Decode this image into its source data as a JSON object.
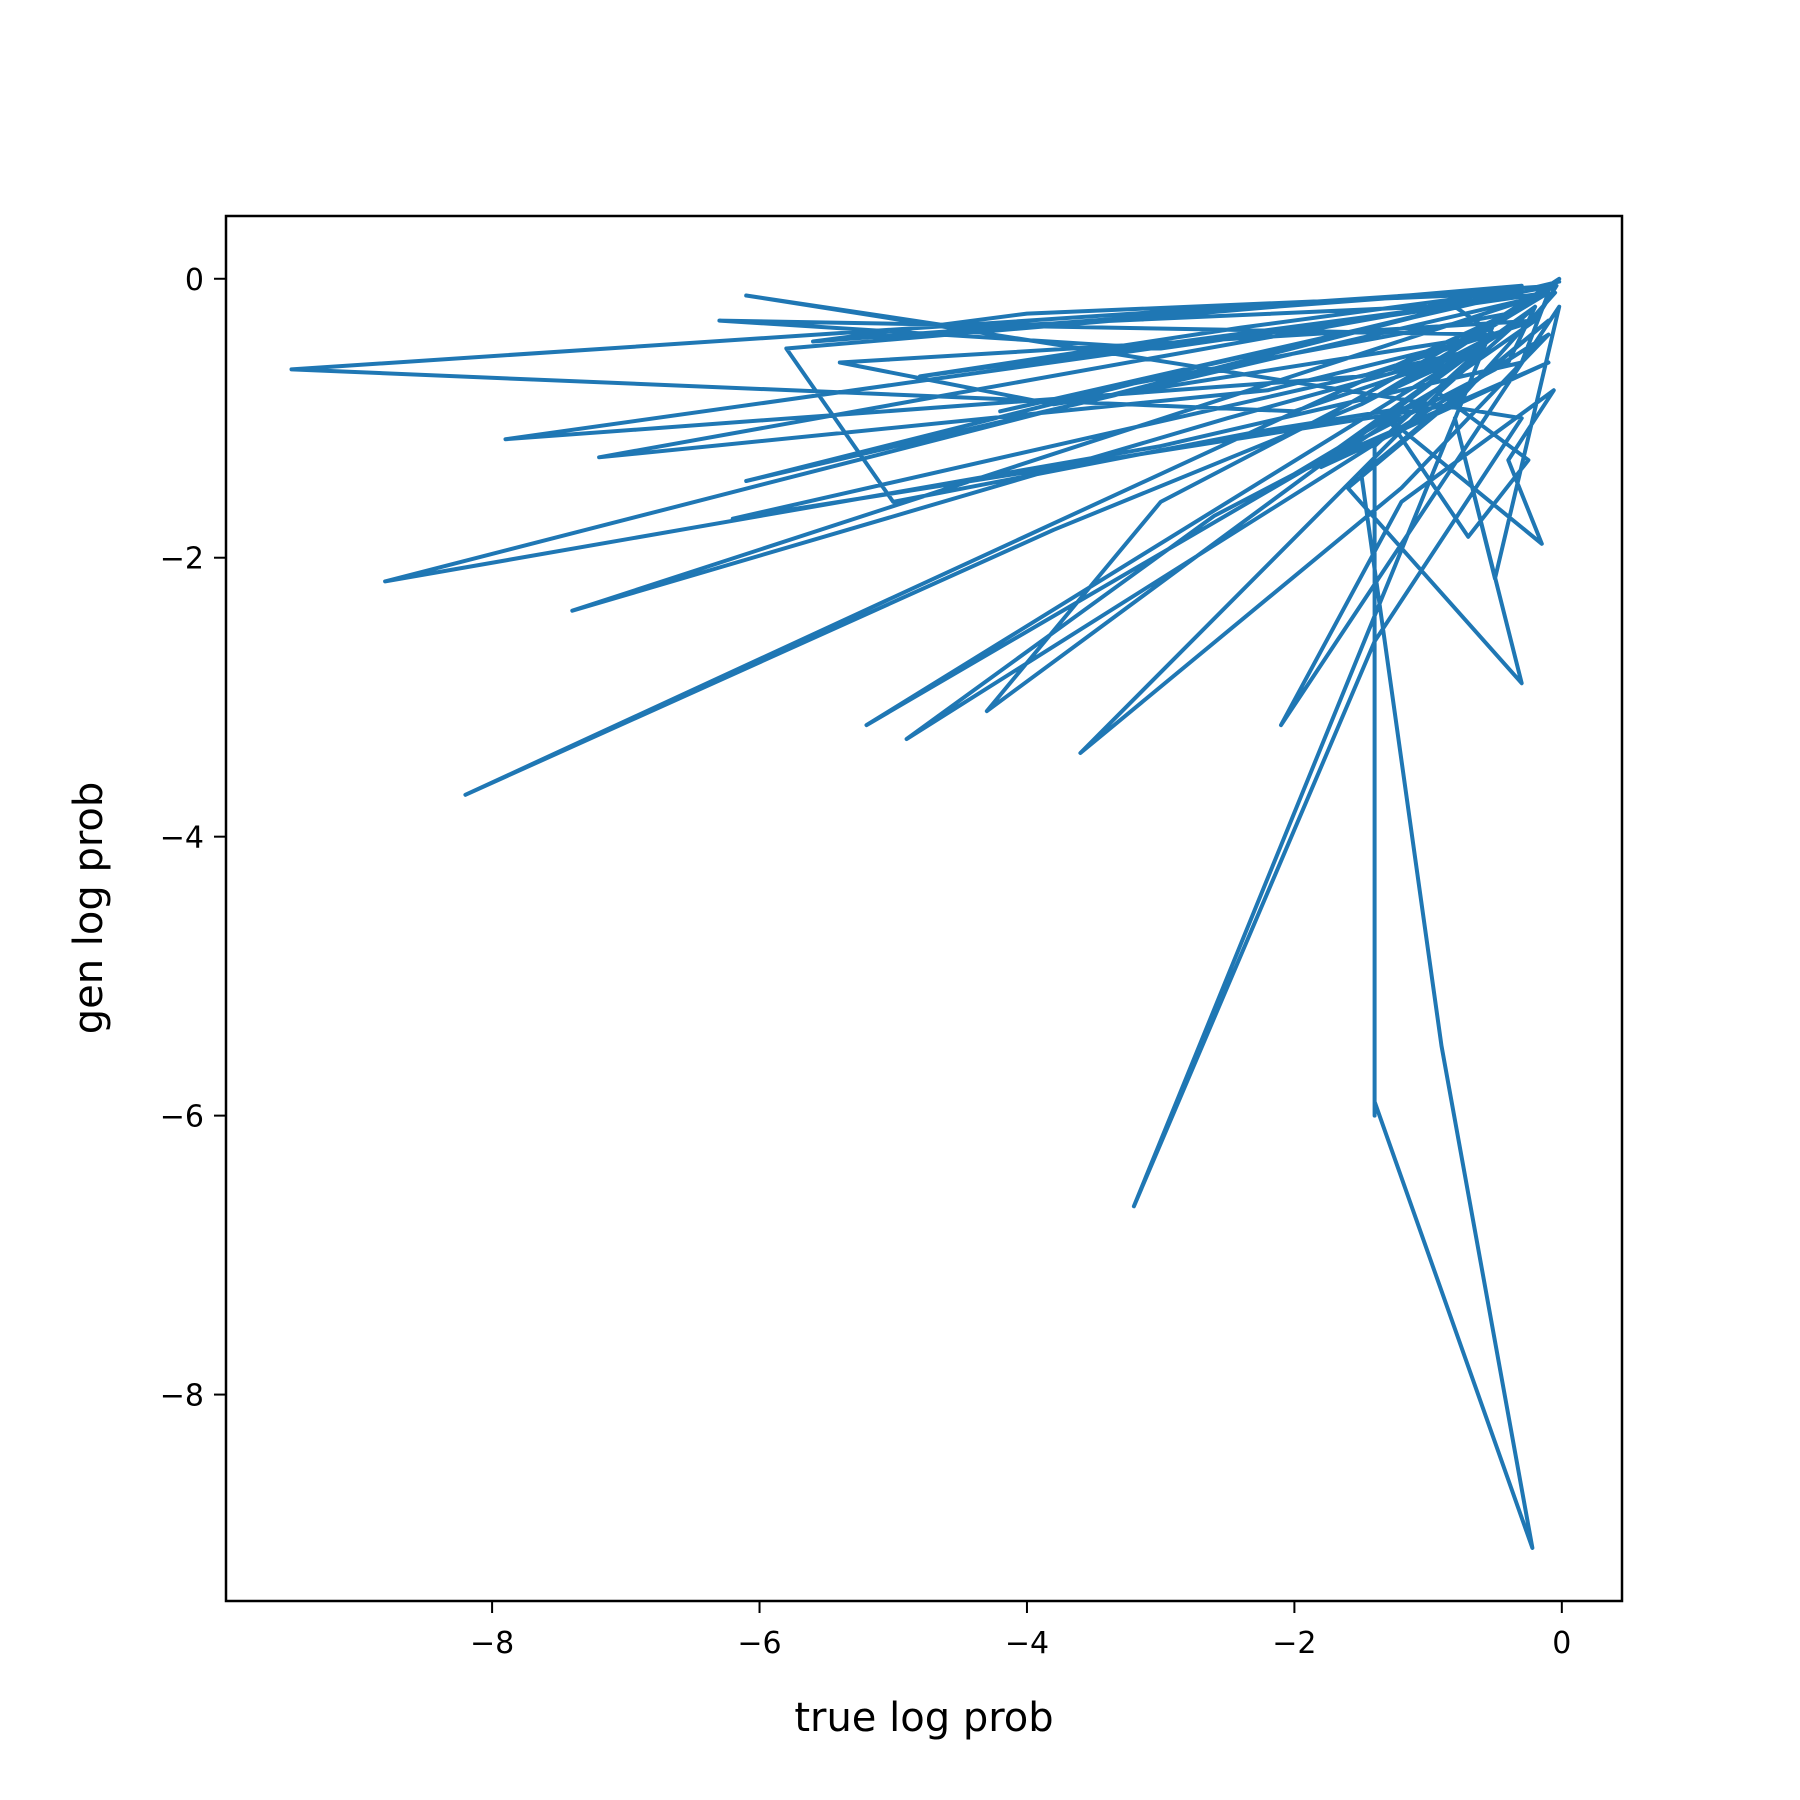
{
  "chart_data": {
    "type": "line",
    "xlabel": "true log prob",
    "ylabel": "gen log prob",
    "xlim": [
      -9.99,
      0.45
    ],
    "ylim": [
      -9.48,
      0.45
    ],
    "xticks": [
      -8,
      -6,
      -4,
      -2,
      0
    ],
    "yticks": [
      0,
      -2,
      -4,
      -6,
      -8
    ],
    "xtick_labels": [
      "−8",
      "−6",
      "−4",
      "−2",
      "0"
    ],
    "ytick_labels": [
      "0",
      "−2",
      "−4",
      "−6",
      "−8"
    ],
    "grid": false,
    "color": "#1f77b4",
    "series": [
      {
        "x": [
          -0.02,
          -0.5,
          -1.1,
          -0.3,
          -0.05,
          -9.5,
          -2.0,
          -0.6,
          -1.4,
          -0.1,
          -7.9,
          -1.5,
          -0.2,
          -0.04,
          -7.2,
          -2.2,
          -0.5,
          -0.8,
          -8.8,
          -3.0,
          -0.3,
          -0.1,
          -7.4,
          -2.5,
          -0.6,
          -6.2,
          -0.8,
          -0.05,
          -6.1,
          -3.2,
          -0.4,
          -8.2,
          -3.8,
          -1.5,
          -0.3,
          -5.2,
          -1.8,
          -0.2,
          -0.9,
          -3.6,
          -1.2,
          -0.1,
          -4.9,
          -2.6,
          -0.4,
          -0.2,
          -4.3,
          -3.0,
          -1.6,
          -0.5,
          -3.2,
          -1.4,
          -0.3,
          -6.1,
          -4.5,
          -1.0,
          -0.3,
          -5.8,
          -5.0,
          -2.3,
          -1.0,
          -0.6,
          -1.4,
          -1.4,
          -1.4,
          -1.4,
          -0.22,
          -0.9,
          -1.5,
          -0.1,
          -1.6,
          -0.3,
          -0.8,
          -0.5,
          -0.02,
          -2.1,
          -1.2,
          -0.06,
          -0.4,
          -0.15,
          -1.3,
          -0.7,
          -0.25,
          -0.95,
          -2.0,
          -0.1,
          -1.8,
          -1.1,
          -0.2,
          -5.4,
          -3.8,
          -0.5,
          -6.3,
          -3.0,
          -0.1,
          -4.8,
          -2.4,
          -0.05,
          -5.6,
          -4.0,
          -0.3,
          -4.2,
          -2.1,
          -0.02
        ],
        "y": [
          0.0,
          -0.3,
          -0.7,
          -0.2,
          -0.05,
          -0.65,
          -0.95,
          -0.5,
          -0.85,
          -0.1,
          -1.15,
          -0.7,
          -0.3,
          -0.05,
          -1.28,
          -0.8,
          -0.4,
          -0.2,
          -2.17,
          -1.2,
          -0.6,
          -0.1,
          -2.38,
          -1.0,
          -0.5,
          -1.72,
          -0.9,
          -0.1,
          -1.45,
          -0.75,
          -0.25,
          -3.7,
          -1.8,
          -0.9,
          -0.3,
          -3.2,
          -1.3,
          -0.2,
          -0.8,
          -3.4,
          -1.5,
          -0.4,
          -3.3,
          -1.7,
          -0.6,
          -0.2,
          -3.1,
          -1.6,
          -0.9,
          -0.3,
          -6.65,
          -2.6,
          -1.0,
          -0.12,
          -0.35,
          -0.2,
          -0.05,
          -0.5,
          -1.6,
          -1.1,
          -0.9,
          -0.5,
          -1.2,
          -6.0,
          -2.6,
          -5.9,
          -9.1,
          -5.5,
          -1.4,
          -0.3,
          -1.5,
          -2.9,
          -1.0,
          -2.15,
          -0.2,
          -3.2,
          -1.6,
          -0.8,
          -1.3,
          -1.9,
          -1.0,
          -1.85,
          -1.3,
          -0.8,
          -1.4,
          -0.6,
          -1.35,
          -0.9,
          -0.3,
          -0.6,
          -0.9,
          -0.4,
          -0.3,
          -0.5,
          -0.1,
          -0.7,
          -0.35,
          -0.05,
          -0.45,
          -0.25,
          -0.1,
          -0.95,
          -0.5,
          -0.02
        ]
      }
    ]
  }
}
